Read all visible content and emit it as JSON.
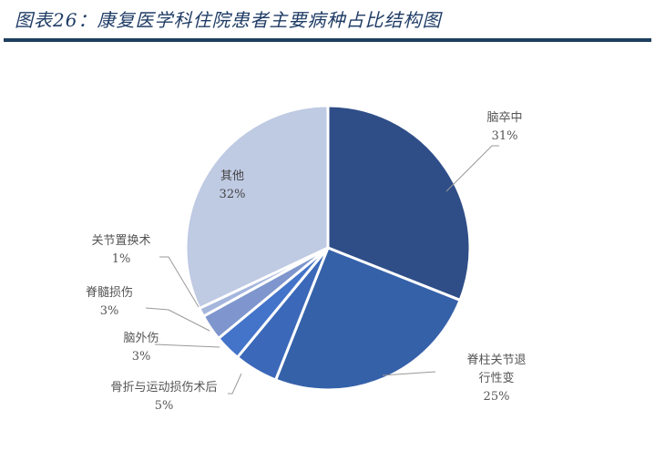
{
  "header": {
    "title": "图表26：康复医学科住院患者主要病种占比结构图"
  },
  "chart_data": {
    "type": "pie",
    "title": "康复医学科住院患者主要病种占比结构图",
    "start_angle": "12 o'clock",
    "direction": "clockwise",
    "categories": [
      "脑卒中",
      "脊柱关节退行性变",
      "骨折与运动损伤术后",
      "脑外伤",
      "脊髓损伤",
      "关节置换术",
      "其他"
    ],
    "values": [
      31,
      25,
      5,
      3,
      3,
      1,
      32
    ],
    "unit": "%",
    "colors": [
      "#2f4e88",
      "#3561a9",
      "#3b68b8",
      "#4474c9",
      "#7e96cd",
      "#a5b6dd",
      "#bfcae3"
    ],
    "labels": [
      {
        "name": "脑卒中",
        "pct": "31%"
      },
      {
        "name": "脊柱关节退行性变",
        "line1": "脊柱关节退",
        "line2": "行性变",
        "pct": "25%"
      },
      {
        "name": "骨折与运动损伤术后",
        "pct": "5%"
      },
      {
        "name": "脑外伤",
        "pct": "3%"
      },
      {
        "name": "脊髓损伤",
        "pct": "3%"
      },
      {
        "name": "关节置换术",
        "pct": "1%"
      },
      {
        "name": "其他",
        "pct": "32%"
      }
    ]
  }
}
